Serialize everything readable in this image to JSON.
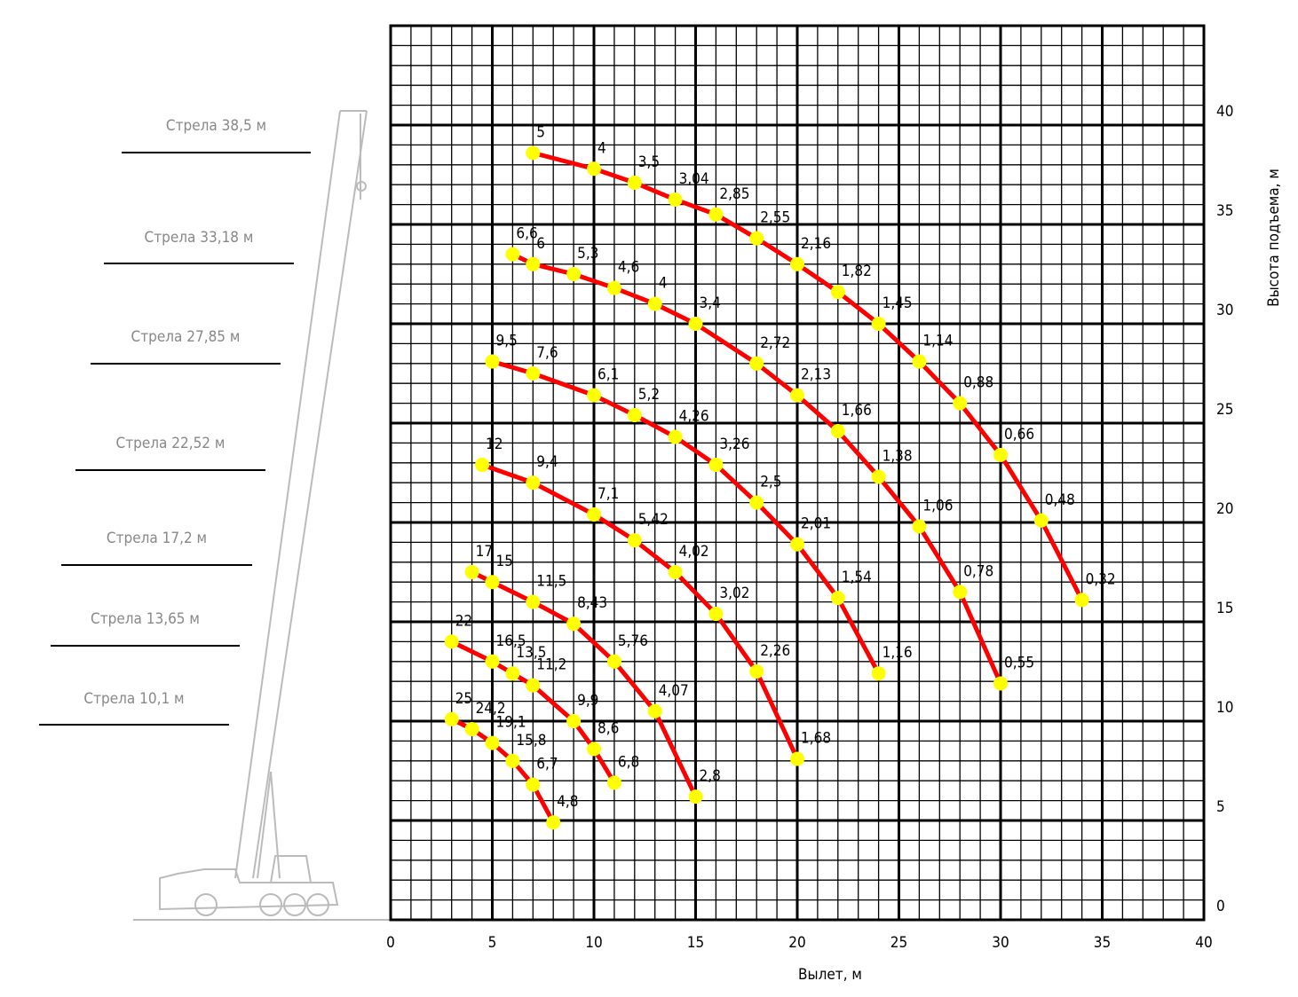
{
  "chart_data": {
    "type": "line",
    "x_label": "Вылет, м",
    "y_label": "Высота подъема, м",
    "xlim": [
      0,
      40
    ],
    "ylim": [
      0,
      45
    ],
    "xticks": [
      0,
      5,
      10,
      15,
      20,
      25,
      30,
      35,
      40
    ],
    "yticks": [
      0,
      5,
      10,
      15,
      20,
      25,
      30,
      35,
      40
    ],
    "grid": true,
    "minor_grid": true,
    "line_color": "#ff0000",
    "marker_color": "#ffff00",
    "series": [
      {
        "name": "Стрела 38,5 м",
        "x": [
          7,
          10,
          12,
          14,
          16,
          18,
          20,
          22,
          24,
          26,
          28,
          30,
          32,
          34
        ],
        "values": [
          38.6,
          37.8,
          37.1,
          36.25,
          35.5,
          34.3,
          33.0,
          31.6,
          30.0,
          28.1,
          26.0,
          23.4,
          20.1,
          16.1
        ],
        "loads": [
          "5",
          "4",
          "3,5",
          "3,04",
          "2,85",
          "2,55",
          "2,16",
          "1,82",
          "1,45",
          "1,14",
          "0,88",
          "0,66",
          "0,48",
          "0,32"
        ]
      },
      {
        "name": "Стрела 33,18 м",
        "x": [
          6,
          7,
          9,
          11,
          13,
          15,
          18,
          20,
          22,
          24,
          26,
          28,
          30
        ],
        "values": [
          33.5,
          33.0,
          32.5,
          31.8,
          31.0,
          30.0,
          28.0,
          26.4,
          24.6,
          22.3,
          19.8,
          16.5,
          11.9
        ],
        "loads": [
          "6,6",
          "6",
          "5,3",
          "4,6",
          "4",
          "3,4",
          "2,72",
          "2,13",
          "1,66",
          "1,38",
          "1,06",
          "0,78",
          "0,55"
        ]
      },
      {
        "name": "Стрела 27,85 м",
        "x": [
          5,
          7,
          10,
          12,
          14,
          16,
          18,
          20,
          22,
          24
        ],
        "values": [
          28.1,
          27.5,
          26.4,
          25.4,
          24.3,
          22.9,
          21.0,
          18.9,
          16.2,
          12.4
        ],
        "loads": [
          "9,5",
          "7,6",
          "6,1",
          "5,2",
          "4,26",
          "3,26",
          "2,5",
          "2,01",
          "1,54",
          "1,16"
        ]
      },
      {
        "name": "Стрела 22,52 м",
        "x": [
          4.5,
          7,
          10,
          12,
          14,
          16,
          18,
          20
        ],
        "values": [
          22.9,
          22.0,
          20.4,
          19.1,
          17.5,
          15.4,
          12.5,
          8.1
        ],
        "loads": [
          "12",
          "9,4",
          "7,1",
          "5,42",
          "4,02",
          "3,02",
          "2,26",
          "1,68"
        ]
      },
      {
        "name": "Стрела 17,2 м",
        "x": [
          4,
          5,
          7,
          9,
          11,
          13,
          15
        ],
        "values": [
          17.5,
          17.0,
          16.0,
          14.9,
          13.0,
          10.5,
          6.2
        ],
        "loads": [
          "17",
          "15",
          "11,5",
          "8,43",
          "5,76",
          "4,07",
          "2,8"
        ]
      },
      {
        "name": "Стрела 13,65 м",
        "x": [
          3,
          5,
          6,
          7,
          9,
          10,
          11
        ],
        "values": [
          14.0,
          13.0,
          12.4,
          11.8,
          10.0,
          8.6,
          6.9
        ],
        "loads": [
          "22",
          "16,5",
          "13,5",
          "11,2",
          "9,9",
          "8,6",
          "6,8"
        ]
      },
      {
        "name": "Стрела 10,1 м",
        "x": [
          3,
          4,
          5,
          6,
          7,
          8
        ],
        "values": [
          10.1,
          9.6,
          8.9,
          8.0,
          6.8,
          4.9
        ],
        "loads": [
          "25",
          "24,2",
          "19,1",
          "15,8",
          "6,7",
          "4,8"
        ]
      }
    ]
  }
}
